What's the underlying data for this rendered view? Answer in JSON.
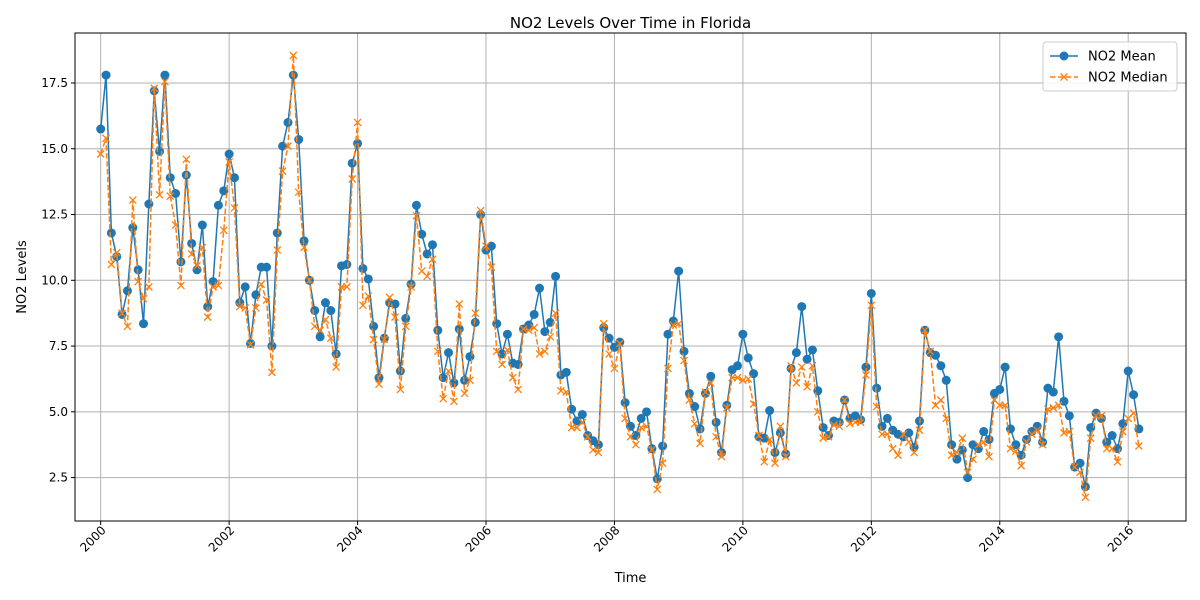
{
  "chart_data": {
    "type": "line",
    "title": "NO2 Levels Over Time in Florida",
    "xlabel": "Time",
    "ylabel": "NO2 Levels",
    "x_start": "2000-01",
    "x_step": "monthly",
    "xlim": [
      1999.6,
      2016.9
    ],
    "ylim": [
      0.85,
      19.4
    ],
    "x_ticks": [
      2000,
      2002,
      2004,
      2006,
      2008,
      2010,
      2012,
      2014,
      2016
    ],
    "x_tick_labels": [
      "2000",
      "2002",
      "2004",
      "2006",
      "2008",
      "2010",
      "2012",
      "2014",
      "2016"
    ],
    "y_ticks": [
      2.5,
      5.0,
      7.5,
      10.0,
      12.5,
      15.0,
      17.5
    ],
    "y_tick_labels": [
      "2.5",
      "5.0",
      "7.5",
      "10.0",
      "12.5",
      "15.0",
      "17.5"
    ],
    "grid": true,
    "legend_position": "top-right",
    "series": [
      {
        "name": "NO2 Mean",
        "color": "#1f77b4",
        "style": "solid",
        "marker": "circle",
        "values": [
          15.75,
          17.8,
          11.8,
          10.9,
          8.7,
          9.6,
          12.0,
          10.4,
          8.35,
          12.9,
          17.2,
          14.9,
          17.8,
          13.9,
          13.3,
          10.7,
          14.0,
          11.4,
          10.4,
          12.1,
          9.0,
          9.95,
          12.85,
          13.4,
          14.8,
          13.9,
          9.15,
          9.75,
          7.6,
          9.45,
          10.5,
          10.5,
          7.5,
          11.8,
          15.1,
          16.0,
          17.8,
          15.35,
          11.5,
          10.0,
          8.85,
          7.85,
          9.15,
          8.85,
          7.2,
          10.55,
          10.6,
          14.45,
          15.2,
          10.45,
          10.05,
          8.25,
          6.3,
          7.8,
          9.15,
          9.1,
          6.55,
          8.55,
          9.85,
          12.85,
          11.75,
          11.0,
          11.35,
          8.1,
          6.3,
          7.25,
          6.1,
          8.15,
          6.2,
          7.1,
          8.4,
          12.5,
          11.15,
          11.3,
          8.35,
          7.2,
          7.95,
          6.85,
          6.8,
          8.15,
          8.3,
          8.7,
          9.7,
          8.05,
          8.4,
          10.15,
          6.4,
          6.5,
          5.1,
          4.65,
          4.9,
          4.1,
          3.9,
          3.75,
          8.2,
          7.8,
          7.45,
          7.65,
          5.35,
          4.45,
          4.1,
          4.75,
          5.0,
          3.6,
          2.45,
          3.7,
          7.95,
          8.45,
          10.35,
          7.3,
          5.7,
          5.2,
          4.35,
          5.7,
          6.35,
          4.6,
          3.45,
          5.25,
          6.6,
          6.75,
          7.95,
          7.05,
          6.45,
          4.05,
          4.0,
          5.05,
          3.45,
          4.2,
          3.4,
          6.65,
          7.25,
          9.0,
          7.0,
          7.35,
          5.8,
          4.4,
          4.1,
          4.65,
          4.6,
          5.45,
          4.75,
          4.85,
          4.7,
          6.7,
          9.5,
          5.9,
          4.45,
          4.75,
          4.3,
          4.15,
          4.05,
          4.2,
          3.65,
          4.65,
          8.1,
          7.25,
          7.15,
          6.75,
          6.2,
          3.75,
          3.2,
          3.55,
          2.5,
          3.75,
          3.6,
          4.25,
          3.95,
          5.7,
          5.85,
          6.7,
          4.35,
          3.75,
          3.35,
          3.95,
          4.25,
          4.45,
          3.85,
          5.9,
          5.75,
          7.85,
          5.4,
          4.85,
          2.9,
          3.05,
          2.15,
          4.4,
          4.95,
          4.75,
          3.85,
          4.1,
          3.6,
          4.55,
          6.55,
          5.65,
          4.35
        ]
      },
      {
        "name": "NO2 Median",
        "color": "#ff7f0e",
        "style": "dashed",
        "marker": "x",
        "values": [
          14.8,
          15.4,
          10.6,
          11.05,
          8.75,
          8.25,
          13.05,
          9.95,
          9.3,
          9.75,
          17.3,
          13.25,
          17.55,
          13.2,
          12.1,
          9.8,
          14.6,
          11.0,
          10.55,
          11.25,
          8.6,
          9.75,
          9.8,
          11.9,
          14.5,
          12.75,
          9.0,
          8.95,
          7.55,
          8.95,
          9.85,
          9.25,
          6.5,
          11.15,
          14.15,
          15.1,
          18.55,
          13.35,
          11.25,
          10.0,
          8.25,
          8.1,
          8.5,
          7.8,
          6.7,
          9.75,
          9.75,
          13.85,
          16.0,
          9.05,
          9.4,
          7.75,
          6.05,
          7.75,
          9.35,
          8.6,
          5.85,
          8.25,
          9.75,
          12.45,
          10.35,
          10.15,
          10.8,
          7.3,
          5.5,
          6.55,
          5.4,
          9.1,
          5.7,
          6.2,
          8.75,
          12.65,
          11.3,
          10.5,
          7.3,
          6.8,
          7.35,
          6.3,
          5.85,
          8.15,
          8.1,
          8.2,
          7.2,
          7.3,
          7.85,
          8.75,
          5.8,
          5.75,
          4.4,
          4.4,
          4.6,
          4.05,
          3.55,
          3.45,
          8.35,
          7.2,
          6.65,
          7.6,
          4.75,
          4.05,
          3.75,
          4.4,
          4.45,
          3.55,
          2.05,
          3.05,
          6.65,
          8.3,
          8.35,
          6.95,
          5.45,
          4.55,
          3.8,
          5.75,
          6.1,
          4.05,
          3.3,
          5.15,
          6.3,
          6.3,
          6.2,
          6.25,
          5.3,
          4.1,
          3.1,
          3.95,
          3.05,
          4.45,
          3.3,
          6.75,
          6.1,
          6.7,
          5.95,
          6.75,
          5.0,
          4.0,
          4.05,
          4.5,
          4.45,
          5.45,
          4.55,
          4.6,
          4.6,
          6.4,
          9.05,
          5.2,
          4.15,
          4.15,
          3.6,
          3.35,
          4.15,
          3.85,
          3.45,
          4.3,
          8.1,
          7.3,
          5.25,
          5.45,
          4.75,
          3.35,
          3.45,
          4.0,
          2.7,
          3.2,
          3.75,
          3.85,
          3.3,
          5.45,
          5.25,
          5.25,
          3.6,
          3.5,
          2.95,
          3.85,
          4.15,
          4.3,
          3.75,
          5.1,
          5.15,
          5.25,
          4.2,
          4.25,
          2.9,
          2.7,
          1.75,
          4.0,
          4.85,
          4.85,
          3.6,
          3.6,
          3.1,
          4.25,
          4.75,
          4.95,
          3.7
        ]
      }
    ]
  }
}
